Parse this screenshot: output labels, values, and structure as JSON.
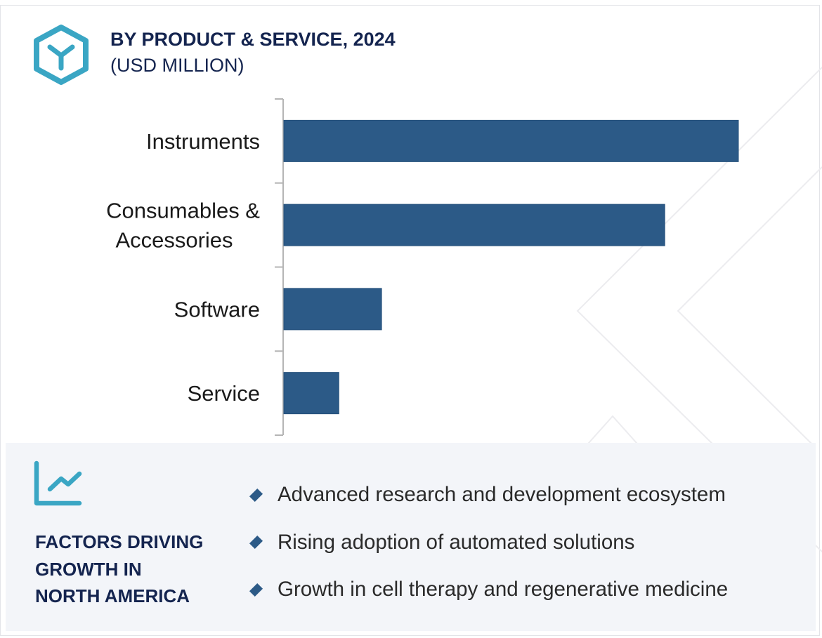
{
  "header": {
    "icon": "hexagon-y-icon",
    "title": "BY PRODUCT & SERVICE, 2024",
    "subtitle": "(USD MILLION)"
  },
  "colors": {
    "title": "#14244f",
    "bar": "#2c5a87",
    "accent_icon": "#3aa6c4",
    "panel_bg": "#f3f5f9",
    "axis": "#b5b5b5",
    "pattern_line": "#ececef"
  },
  "chart_data": {
    "type": "bar",
    "orientation": "horizontal",
    "title": "BY PRODUCT & SERVICE, 2024",
    "subtitle": "(USD MILLION)",
    "xlabel": "",
    "ylabel": "",
    "value_axis_labeled": false,
    "value_note": "No numeric scale shown; values are relative to the largest bar (Instruments = 1.0)",
    "categories": [
      "Instruments",
      "Consumables & Accessories",
      "Software",
      "Service"
    ],
    "category_lines": [
      [
        "Instruments"
      ],
      [
        "Consumables &",
        "Accessories"
      ],
      [
        "Software"
      ],
      [
        "Service"
      ]
    ],
    "values": [
      1.0,
      0.838,
      0.215,
      0.121
    ],
    "xlim": [
      0,
      1.0
    ],
    "grid": false,
    "legend": "none"
  },
  "factors": {
    "icon": "line-chart-growth-icon",
    "title": "FACTORS DRIVING GROWTH IN NORTH AMERICA",
    "title_lines": [
      "FACTORS DRIVING",
      "GROWTH IN",
      "NORTH AMERICA"
    ],
    "items": [
      "Advanced research and development ecosystem",
      "Rising adoption of automated solutions",
      "Growth in cell therapy and regenerative medicine"
    ]
  }
}
